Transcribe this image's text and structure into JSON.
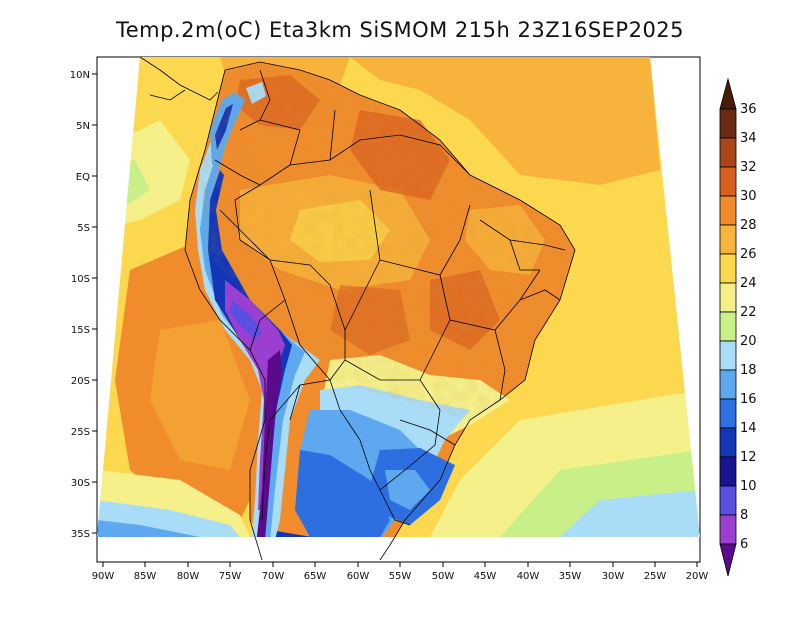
{
  "title": "Temp.2m(oC) Eta3km SiSMOM 215h 23Z16SEP2025",
  "map": {
    "lat_ticks": [
      "10N",
      "5N",
      "EQ",
      "5S",
      "10S",
      "15S",
      "20S",
      "25S",
      "30S",
      "35S"
    ],
    "lon_ticks": [
      "90W",
      "85W",
      "80W",
      "75W",
      "70W",
      "65W",
      "60W",
      "55W",
      "50W",
      "45W",
      "40W",
      "35W",
      "30W",
      "25W",
      "20W"
    ]
  },
  "colorbar": {
    "labels": [
      "36",
      "34",
      "32",
      "30",
      "28",
      "26",
      "24",
      "22",
      "20",
      "18",
      "16",
      "14",
      "12",
      "10",
      "8",
      "6"
    ],
    "colors": {
      "top_arrow": "#4a1a08",
      "34-36": "#6a2a10",
      "32-34": "#a8451a",
      "30-32": "#d9611f",
      "28-30": "#f08c2c",
      "26-28": "#f7b33b",
      "24-26": "#fbd84d",
      "22-24": "#f5f08a",
      "20-22": "#c8ef88",
      "18-20": "#a9dcf7",
      "16-18": "#5ea8ef",
      "14-16": "#2d6fe0",
      "12-14": "#1236b8",
      "10-12": "#1a1490",
      "8-10": "#5a4fe0",
      "6-8": "#9b3fd0",
      "bottom_arrow": "#5a0a8a"
    }
  }
}
